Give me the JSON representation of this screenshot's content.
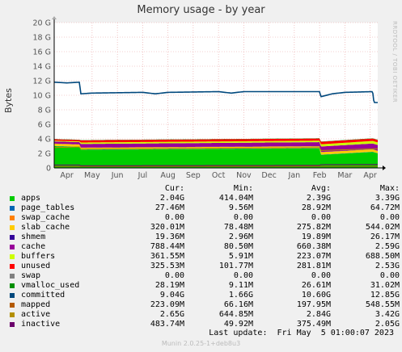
{
  "title": "Memory usage - by year",
  "y_axis_label": "Bytes",
  "watermark": "RRDTOOL / TOBI OETIKER",
  "legend_headers": {
    "cur": "Cur:",
    "min": "Min:",
    "avg": "Avg:",
    "max": "Max:"
  },
  "legend": [
    {
      "name": "apps",
      "color": "#00cc00",
      "cur": "2.04G",
      "min": "414.04M",
      "avg": "2.39G",
      "max": "3.39G"
    },
    {
      "name": "page_tables",
      "color": "#0066b3",
      "cur": "27.46M",
      "min": "9.56M",
      "avg": "28.92M",
      "max": "64.72M"
    },
    {
      "name": "swap_cache",
      "color": "#ff8000",
      "cur": "0.00",
      "min": "0.00",
      "avg": "0.00",
      "max": "0.00"
    },
    {
      "name": "slab_cache",
      "color": "#ffcc00",
      "cur": "320.01M",
      "min": "78.48M",
      "avg": "275.82M",
      "max": "544.02M"
    },
    {
      "name": "shmem",
      "color": "#330099",
      "cur": "19.36M",
      "min": "2.96M",
      "avg": "19.89M",
      "max": "26.17M"
    },
    {
      "name": "cache",
      "color": "#990099",
      "cur": "788.44M",
      "min": "80.50M",
      "avg": "660.38M",
      "max": "2.59G"
    },
    {
      "name": "buffers",
      "color": "#ccff00",
      "cur": "361.55M",
      "min": "5.91M",
      "avg": "223.07M",
      "max": "688.50M"
    },
    {
      "name": "unused",
      "color": "#ff0000",
      "cur": "325.53M",
      "min": "101.77M",
      "avg": "281.81M",
      "max": "2.53G"
    },
    {
      "name": "swap",
      "color": "#808080",
      "cur": "0.00",
      "min": "0.00",
      "avg": "0.00",
      "max": "0.00"
    },
    {
      "name": "vmalloc_used",
      "color": "#008f00",
      "cur": "28.19M",
      "min": "9.11M",
      "avg": "26.61M",
      "max": "31.02M"
    },
    {
      "name": "committed",
      "color": "#00487d",
      "cur": "9.04G",
      "min": "1.66G",
      "avg": "10.60G",
      "max": "12.85G"
    },
    {
      "name": "mapped",
      "color": "#b35a00",
      "cur": "223.09M",
      "min": "66.16M",
      "avg": "197.95M",
      "max": "548.55M"
    },
    {
      "name": "active",
      "color": "#b38f00",
      "cur": "2.65G",
      "min": "644.85M",
      "avg": "2.84G",
      "max": "3.42G"
    },
    {
      "name": "inactive",
      "color": "#6b006b",
      "cur": "483.74M",
      "min": "49.92M",
      "avg": "375.49M",
      "max": "2.05G"
    }
  ],
  "last_update": "Last update:  Fri May  5 01:00:07 2023",
  "version": "Munin 2.0.25-1+deb8u3",
  "chart_data": {
    "type": "area",
    "title": "Memory usage - by year",
    "ylabel": "Bytes",
    "xlabel": "",
    "ylim": [
      0,
      20
    ],
    "y_unit": "G",
    "y_ticks": [
      "0",
      "2 G",
      "4 G",
      "6 G",
      "8 G",
      "10 G",
      "12 G",
      "14 G",
      "16 G",
      "18 G",
      "20 G"
    ],
    "x_ticks": [
      "Apr",
      "May",
      "Jun",
      "Jul",
      "Aug",
      "Sep",
      "Oct",
      "Nov",
      "Dec",
      "Jan",
      "Feb",
      "Mar",
      "Apr"
    ],
    "x_range_months": [
      -0.5,
      12.3
    ],
    "grid": true,
    "stacked_series": [
      {
        "name": "apps",
        "color": "#00cc00",
        "x": [
          -0.5,
          0.5,
          0.55,
          10.0,
          10.05,
          12.1,
          12.3
        ],
        "values": [
          3.0,
          2.9,
          2.5,
          2.7,
          1.8,
          2.2,
          2.0
        ]
      },
      {
        "name": "page_tables",
        "color": "#0066b3",
        "x": [
          -0.5,
          12.3
        ],
        "values": [
          0.03,
          0.03
        ]
      },
      {
        "name": "slab_cache",
        "color": "#ffcc00",
        "x": [
          -0.5,
          0.5,
          0.55,
          10.0,
          10.05,
          12.3
        ],
        "values": [
          0.3,
          0.3,
          0.25,
          0.25,
          0.35,
          0.32
        ]
      },
      {
        "name": "shmem",
        "color": "#330099",
        "x": [
          -0.5,
          12.3
        ],
        "values": [
          0.02,
          0.02
        ]
      },
      {
        "name": "cache",
        "color": "#990099",
        "x": [
          -0.5,
          0.5,
          0.55,
          10.0,
          10.05,
          12.3
        ],
        "values": [
          0.3,
          0.3,
          0.5,
          0.55,
          0.75,
          0.79
        ]
      },
      {
        "name": "buffers",
        "color": "#ccff00",
        "x": [
          -0.5,
          0.5,
          0.55,
          10.0,
          10.05,
          12.3
        ],
        "values": [
          0.1,
          0.1,
          0.2,
          0.2,
          0.3,
          0.36
        ]
      },
      {
        "name": "unused",
        "color": "#ff0000",
        "x": [
          -0.5,
          0.5,
          0.55,
          10.0,
          10.05,
          12.3
        ],
        "values": [
          0.2,
          0.2,
          0.3,
          0.3,
          0.35,
          0.33
        ]
      },
      {
        "name": "vmalloc_used",
        "color": "#008f00",
        "x": [
          -0.5,
          12.3
        ],
        "values": [
          0.03,
          0.03
        ]
      }
    ],
    "line_series": [
      {
        "name": "committed",
        "color": "#00487d",
        "x": [
          -0.5,
          0.0,
          0.5,
          0.55,
          1.0,
          3.0,
          3.5,
          4.0,
          6.0,
          6.5,
          7.0,
          10.0,
          10.05,
          10.5,
          11.0,
          12.1,
          12.15,
          12.3
        ],
        "values": [
          11.8,
          11.7,
          11.8,
          10.2,
          10.3,
          10.4,
          10.2,
          10.4,
          10.5,
          10.3,
          10.5,
          10.5,
          9.8,
          10.2,
          10.4,
          10.5,
          9.0,
          9.0
        ]
      },
      {
        "name": "active",
        "color": "#b38f00",
        "x": [
          -0.5,
          0.5,
          0.55,
          10.0,
          10.05,
          12.3
        ],
        "values": [
          2.8,
          2.9,
          2.6,
          2.8,
          2.4,
          2.65
        ]
      },
      {
        "name": "mapped",
        "color": "#b35a00",
        "x": [
          -0.5,
          12.3
        ],
        "values": [
          0.2,
          0.22
        ]
      },
      {
        "name": "inactive",
        "color": "#6b006b",
        "x": [
          -0.5,
          0.5,
          0.55,
          10.0,
          10.05,
          12.3
        ],
        "values": [
          0.4,
          0.4,
          0.3,
          0.35,
          0.45,
          0.48
        ]
      }
    ]
  }
}
